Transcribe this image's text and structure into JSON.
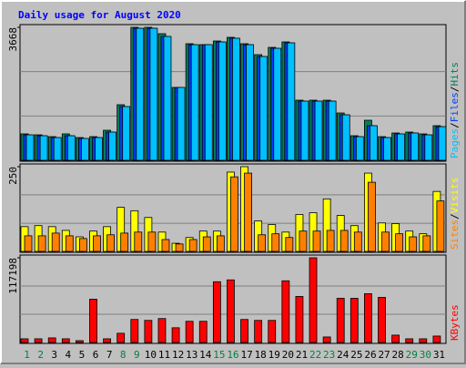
{
  "chart_data": {
    "type": "bar",
    "title": "Daily usage for August 2020",
    "categories": [
      "1",
      "2",
      "3",
      "4",
      "5",
      "6",
      "7",
      "8",
      "9",
      "10",
      "11",
      "12",
      "13",
      "14",
      "15",
      "16",
      "17",
      "18",
      "19",
      "20",
      "21",
      "22",
      "23",
      "24",
      "25",
      "26",
      "27",
      "28",
      "29",
      "30",
      "31"
    ],
    "label_colors": [
      "#008040",
      "#008040",
      "#000000",
      "#000000",
      "#000000",
      "#000000",
      "#000000",
      "#008040",
      "#008040",
      "#000000",
      "#000000",
      "#000000",
      "#000000",
      "#000000",
      "#008040",
      "#008040",
      "#000000",
      "#000000",
      "#000000",
      "#000000",
      "#000000",
      "#008040",
      "#008040",
      "#000000",
      "#000000",
      "#000000",
      "#000000",
      "#000000",
      "#008040",
      "#008040",
      "#000000"
    ],
    "panels": [
      {
        "ylim": [
          0,
          3668
        ],
        "yticks": [
          3668
        ],
        "gridlines": [
          1223,
          2445
        ],
        "separator": "/",
        "series": [
          {
            "name": "Hits",
            "color": "#00805c",
            "values": [
              729,
              703,
              653,
              729,
              628,
              653,
              829,
              1533,
              3668,
              3668,
              3492,
              2010,
              3216,
              3190,
              3291,
              3392,
              3216,
              2914,
              3115,
              3266,
              1658,
              1658,
              1658,
              1306,
              678,
              1105,
              653,
              754,
              779,
              729,
              955
            ]
          },
          {
            "name": "Files",
            "color": "#0040ff",
            "values": [
              703,
              678,
              628,
              678,
              603,
              628,
              779,
              1483,
              3643,
              3643,
              3417,
              2010,
              3190,
              3190,
              3266,
              3367,
              3190,
              2864,
              3090,
              3241,
              1633,
              1633,
              1633,
              1256,
              653,
              955,
              628,
              729,
              754,
              703,
              929
            ]
          },
          {
            "name": "Pages",
            "color": "#00c0ff",
            "values": [
              703,
              678,
              628,
              678,
              603,
              628,
              779,
              1483,
              3643,
              3643,
              3417,
              2010,
              3190,
              3190,
              3266,
              3367,
              3190,
              2864,
              3090,
              3241,
              1633,
              1633,
              1633,
              1256,
              653,
              955,
              628,
              729,
              754,
              703,
              929
            ]
          }
        ]
      },
      {
        "ylim": [
          0,
          250
        ],
        "yticks": [
          250
        ],
        "gridlines": [
          83,
          167
        ],
        "separator": "/",
        "series": [
          {
            "name": "Visits",
            "color": "#ffff00",
            "values": [
              73,
              76,
              73,
              62,
              43,
              60,
              73,
              130,
              120,
              100,
              57,
              24,
              41,
              60,
              60,
              234,
              250,
              90,
              79,
              57,
              109,
              114,
              155,
              106,
              76,
              231,
              84,
              82,
              60,
              52,
              177
            ]
          },
          {
            "name": "Sites",
            "color": "#ff8000",
            "values": [
              46,
              46,
              54,
              46,
              38,
              46,
              49,
              54,
              57,
              57,
              35,
              22,
              35,
              43,
              46,
              220,
              231,
              49,
              52,
              41,
              60,
              60,
              62,
              62,
              57,
              204,
              57,
              52,
              43,
              46,
              149
            ]
          }
        ]
      },
      {
        "ylim": [
          0,
          117198
        ],
        "yticks": [
          117198
        ],
        "gridlines": [
          39066,
          78132
        ],
        "series": [
          {
            "name": "KBytes",
            "color": "#ff0000",
            "values": [
              5096,
              5096,
              6370,
              5096,
              2548,
              59873,
              5096,
              12739,
              31847,
              30573,
              33121,
              20382,
              29300,
              29300,
              84078,
              86626,
              31847,
              30573,
              30573,
              85352,
              63695,
              117198,
              7643,
              61147,
              61147,
              67516,
              62421,
              10191,
              5096,
              5096,
              8917
            ]
          }
        ]
      }
    ]
  }
}
